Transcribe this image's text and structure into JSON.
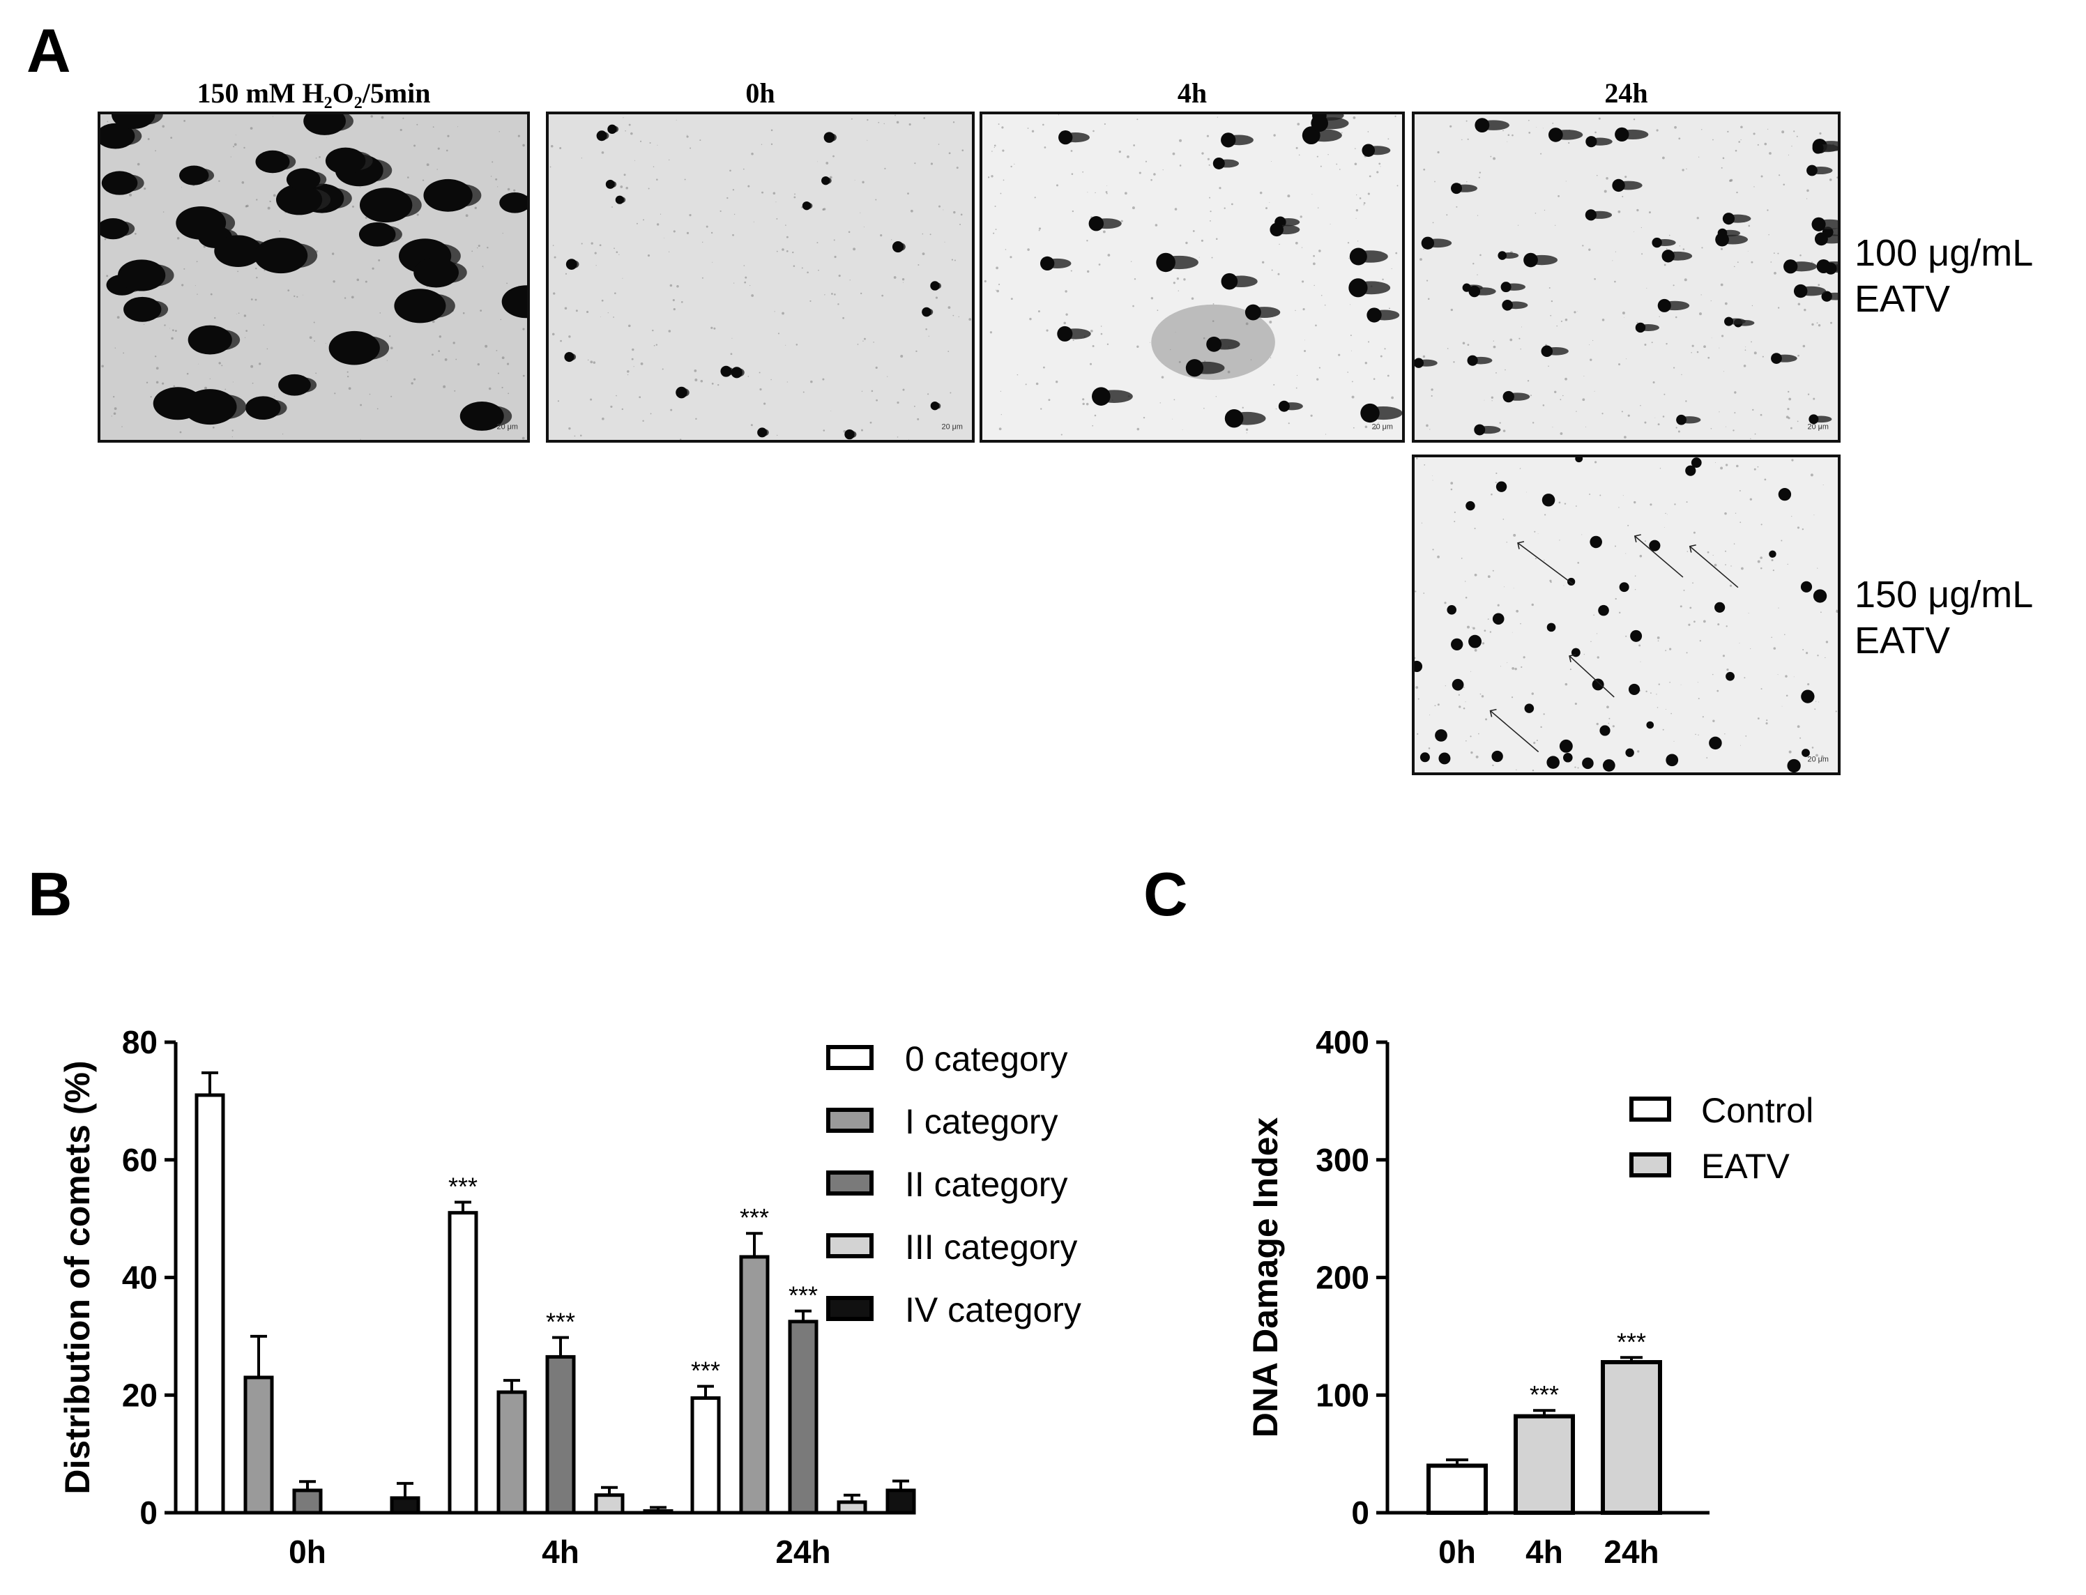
{
  "panel_a": {
    "letter": "A",
    "columns": [
      "150 mM H₂O₂/5min",
      "0h",
      "4h",
      "24h"
    ],
    "row_labels": [
      {
        "line1": "100 μg/mL",
        "line2": "EATV"
      },
      {
        "line1": "150 μg/mL",
        "line2": "EATV"
      }
    ],
    "scale_bar": "20 μm"
  },
  "panel_b": {
    "letter": "B"
  },
  "panel_c": {
    "letter": "C"
  },
  "chart_data": [
    {
      "type": "bar",
      "panel": "B",
      "ylabel": "Distribution of comets (%)",
      "ylim": [
        0,
        80
      ],
      "yticks": [
        0,
        20,
        40,
        60,
        80
      ],
      "categories": [
        "0h",
        "4h",
        "24h"
      ],
      "legend_position": "top-right",
      "series": [
        {
          "name": "0 category",
          "color": "#ffffff",
          "values": [
            71,
            51,
            19.5
          ],
          "errors": [
            3.8,
            1.8,
            2.0
          ],
          "sig": [
            "",
            "***",
            "***"
          ]
        },
        {
          "name": "I category",
          "color": "#9a9a9a",
          "values": [
            23,
            20.5,
            43.5
          ],
          "errors": [
            7,
            2,
            4
          ],
          "sig": [
            "",
            "",
            "***"
          ]
        },
        {
          "name": "II category",
          "color": "#7a7a7a",
          "values": [
            3.8,
            26.5,
            32.5
          ],
          "errors": [
            1.5,
            3.3,
            1.8
          ],
          "sig": [
            "",
            "***",
            "***"
          ]
        },
        {
          "name": "III category",
          "color": "#d3d3d3",
          "values": [
            0,
            3,
            1.8
          ],
          "errors": [
            0,
            1.3,
            1.2
          ],
          "sig": [
            "",
            "",
            ""
          ]
        },
        {
          "name": "IV category",
          "color": "#111111",
          "values": [
            2.5,
            0.3,
            3.8
          ],
          "errors": [
            2.5,
            0.6,
            1.6
          ],
          "sig": [
            "",
            "",
            ""
          ]
        }
      ]
    },
    {
      "type": "bar",
      "panel": "C",
      "ylabel": "DNA Damage Index",
      "ylim": [
        0,
        400
      ],
      "yticks": [
        0,
        100,
        200,
        300,
        400
      ],
      "categories": [
        "0h",
        "4h",
        "24h"
      ],
      "values": [
        40,
        82,
        128
      ],
      "errors": [
        5,
        5,
        4
      ],
      "colors": [
        "#ffffff",
        "#d3d3d3",
        "#d3d3d3"
      ],
      "sig": [
        "",
        "***",
        "***"
      ],
      "legend": [
        {
          "name": "Control",
          "color": "#ffffff"
        },
        {
          "name": "EATV",
          "color": "#d3d3d3"
        }
      ],
      "legend_position": "top-right"
    }
  ]
}
